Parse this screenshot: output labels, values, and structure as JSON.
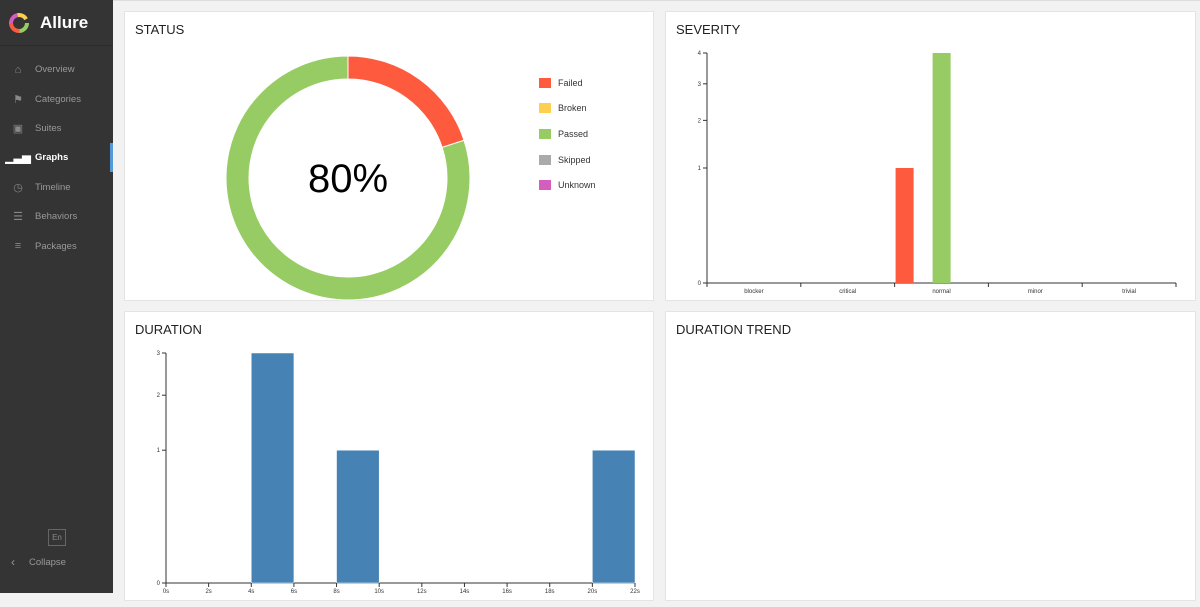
{
  "app": {
    "title": "Allure"
  },
  "sidebar": {
    "items": [
      {
        "label": "Overview",
        "icon": "home-icon"
      },
      {
        "label": "Categories",
        "icon": "flag-icon"
      },
      {
        "label": "Suites",
        "icon": "briefcase-icon"
      },
      {
        "label": "Graphs",
        "icon": "bar-chart-icon",
        "active": true
      },
      {
        "label": "Timeline",
        "icon": "clock-icon"
      },
      {
        "label": "Behaviors",
        "icon": "list-icon"
      },
      {
        "label": "Packages",
        "icon": "align-left-icon"
      }
    ],
    "language": "En",
    "collapse": "Collapse"
  },
  "panels": {
    "status": "STATUS",
    "severity": "SEVERITY",
    "duration": "DURATION",
    "trend": "DURATION TREND"
  },
  "chart_data": [
    {
      "type": "pie",
      "title": "STATUS",
      "center_label": "80%",
      "legend": [
        "Failed",
        "Broken",
        "Passed",
        "Skipped",
        "Unknown"
      ],
      "colors": {
        "Failed": "#fd5a3e",
        "Broken": "#ffd050",
        "Passed": "#97cc64",
        "Skipped": "#aaaaaa",
        "Unknown": "#d35ebe"
      },
      "values": {
        "Failed": 1,
        "Broken": 0,
        "Passed": 4,
        "Skipped": 0,
        "Unknown": 0
      }
    },
    {
      "type": "bar",
      "title": "SEVERITY",
      "categories": [
        "blocker",
        "critical",
        "normal",
        "minor",
        "trivial"
      ],
      "series": [
        {
          "name": "Failed",
          "color": "#fd5a3e",
          "values": [
            0,
            0,
            1,
            0,
            0
          ]
        },
        {
          "name": "Passed",
          "color": "#97cc64",
          "values": [
            0,
            0,
            4,
            0,
            0
          ]
        }
      ],
      "yticks": [
        0,
        1,
        2,
        3,
        4
      ],
      "ylim": [
        0,
        4
      ],
      "yscale": "sqrt"
    },
    {
      "type": "bar",
      "title": "DURATION",
      "xticks": [
        "0s",
        "2s",
        "4s",
        "6s",
        "8s",
        "10s",
        "12s",
        "14s",
        "16s",
        "18s",
        "20s",
        "22s"
      ],
      "xlim": [
        0,
        22
      ],
      "bins": [
        {
          "from": 4,
          "to": 6,
          "count": 3
        },
        {
          "from": 8,
          "to": 10,
          "count": 1
        },
        {
          "from": 20,
          "to": 22,
          "count": 1
        }
      ],
      "color": "#4682b4",
      "yticks": [
        0,
        1,
        2,
        3
      ],
      "ylim": [
        0,
        3
      ],
      "yscale": "sqrt"
    }
  ]
}
